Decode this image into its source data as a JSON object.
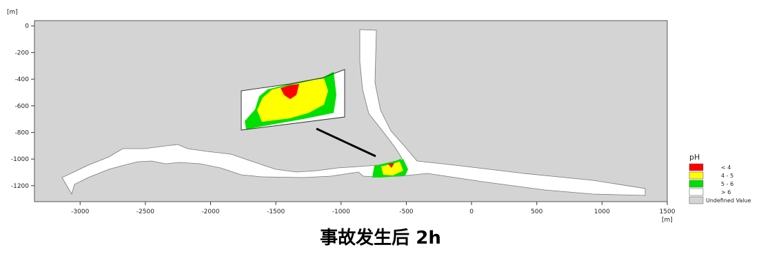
{
  "map": {
    "y_unit": "[m]",
    "x_unit": "[m]",
    "x_ticks": [
      "-3000",
      "-2500",
      "-2000",
      "-1500",
      "-1000",
      "-500",
      "0",
      "500",
      "1000",
      "1500"
    ],
    "y_ticks": [
      "0",
      "-200",
      "-400",
      "-600",
      "-800",
      "-1000",
      "-1200"
    ],
    "x_range": [
      -3350,
      1500
    ],
    "y_range": [
      -1320,
      40
    ]
  },
  "legend": {
    "title": "pH",
    "items": [
      {
        "label": "< 4",
        "color": "#ff0000"
      },
      {
        "label": "4 - 5",
        "color": "#ffff00"
      },
      {
        "label": "5 - 6",
        "color": "#00e000"
      },
      {
        "label": "> 6",
        "color": "#ffffff"
      },
      {
        "label": "Undefined Value",
        "color": "#d4d4d4"
      }
    ]
  },
  "caption": "事故发生后 2h"
}
